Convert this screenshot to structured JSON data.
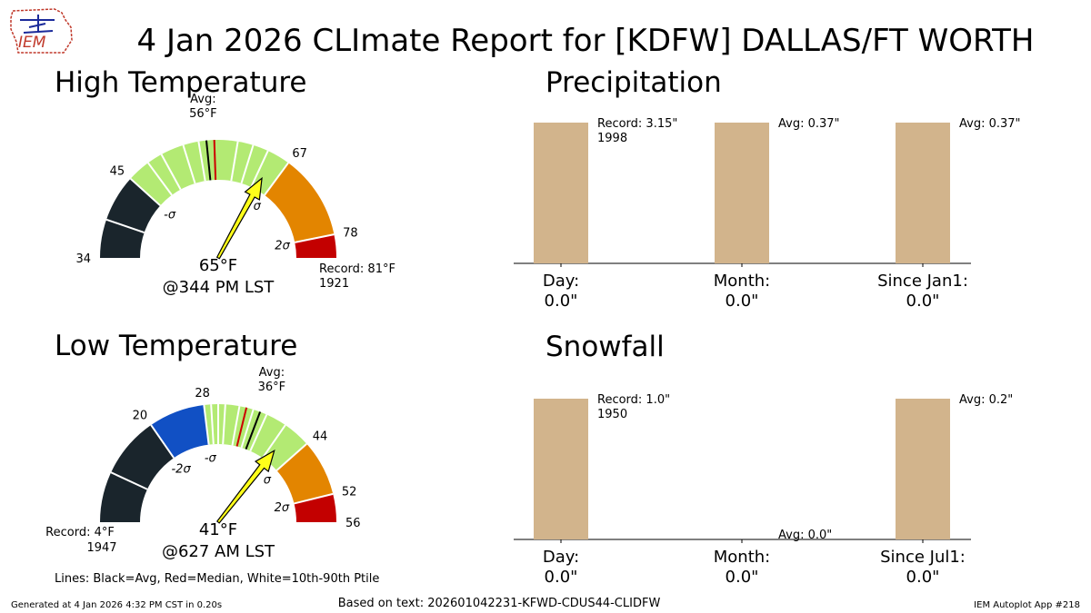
{
  "title": "4 Jan 2026 CLImate Report for [KDFW] DALLAS/FT WORTH",
  "logo_text": "IEM",
  "footer": {
    "generated": "Generated at 4 Jan 2026 4:32 PM CST in 0.20s",
    "based_on": "Based on text: 202601042231-KFWD-CDUS44-CLIDFW",
    "app": "IEM Autoplot App #218",
    "lines_legend": "Lines: Black=Avg, Red=Median, White=10th-90th Ptile"
  },
  "colors": {
    "gauge_dark": "#1a252c",
    "gauge_blue": "#1150c4",
    "gauge_green": "#b3ea73",
    "gauge_orange": "#e38500",
    "gauge_red": "#c30000",
    "needle_fill": "#ffff1a",
    "bar": "#d2b48c",
    "avg_line": "#000000",
    "median_line": "#cc0000",
    "ptile_line": "#ffffff"
  },
  "chart_data": [
    {
      "type": "gauge",
      "id": "high",
      "title": "High Temperature",
      "range": [
        34,
        81
      ],
      "observed": 65,
      "observed_label": "65°F",
      "time_label": "@344 PM LST",
      "avg": 56,
      "avg_label": [
        "Avg:",
        "56°F"
      ],
      "median": 57,
      "ptile_lines": [
        48,
        50,
        53,
        55,
        60,
        62,
        64
      ],
      "band_edges": [
        {
          "from": 34,
          "to": 45,
          "color": "gauge_dark"
        },
        {
          "from": 45,
          "to": 67,
          "color": "gauge_green"
        },
        {
          "from": 67,
          "to": 78,
          "color": "gauge_orange"
        },
        {
          "from": 78,
          "to": 81,
          "color": "gauge_red"
        }
      ],
      "tick_labels": [
        {
          "value": 34,
          "text": "34"
        },
        {
          "value": 45,
          "text": "45"
        },
        {
          "value": 67,
          "text": "67"
        },
        {
          "value": 78,
          "text": "78"
        }
      ],
      "sigma_labels": [
        {
          "value": 45,
          "text": "-σ"
        },
        {
          "value": 67,
          "text": "σ"
        },
        {
          "value": 78,
          "text": "2σ"
        }
      ],
      "record_label": [
        "Record: 81°F",
        "1921"
      ]
    },
    {
      "type": "gauge",
      "id": "low",
      "title": "Low Temperature",
      "range": [
        4,
        56
      ],
      "observed": 41,
      "observed_label": "41°F",
      "time_label": "@627 AM LST",
      "avg": 36,
      "avg_label": [
        "Avg:",
        "36°F"
      ],
      "median": 34,
      "ptile_lines": [
        29,
        30,
        31,
        33,
        35,
        37,
        40
      ],
      "band_edges": [
        {
          "from": 4,
          "to": 20,
          "color": "gauge_dark"
        },
        {
          "from": 20,
          "to": 28,
          "color": "gauge_blue"
        },
        {
          "from": 28,
          "to": 44,
          "color": "gauge_green"
        },
        {
          "from": 44,
          "to": 52,
          "color": "gauge_orange"
        },
        {
          "from": 52,
          "to": 56,
          "color": "gauge_red"
        }
      ],
      "tick_labels": [
        {
          "value": 20,
          "text": "20"
        },
        {
          "value": 28,
          "text": "28"
        },
        {
          "value": 44,
          "text": "44"
        },
        {
          "value": 52,
          "text": "52"
        },
        {
          "value": 56,
          "text": "56"
        }
      ],
      "sigma_labels": [
        {
          "value": 20,
          "text": "-2σ"
        },
        {
          "value": 28,
          "text": "-σ"
        },
        {
          "value": 44,
          "text": "σ"
        },
        {
          "value": 52,
          "text": "2σ"
        }
      ],
      "record_label": [
        "Record: 4°F",
        "1947"
      ]
    },
    {
      "type": "bar",
      "id": "precip",
      "title": "Precipitation",
      "categories": [
        "Day:",
        "Month:",
        "Since Jan1:"
      ],
      "observed_labels": [
        "0.0\"",
        "0.0\"",
        "0.0\""
      ],
      "observed": [
        0.0,
        0.0,
        0.0
      ],
      "reference": [
        3.15,
        0.37,
        0.37
      ],
      "reference_labels": [
        [
          "Record: 3.15\"",
          "1998"
        ],
        [
          "Avg: 0.37\""
        ],
        [
          "Avg: 0.37\""
        ]
      ],
      "bar_fraction": [
        1.0,
        1.0,
        1.0
      ]
    },
    {
      "type": "bar",
      "id": "snow",
      "title": "Snowfall",
      "categories": [
        "Day:",
        "Month:",
        "Since Jul1:"
      ],
      "observed_labels": [
        "0.0\"",
        "0.0\"",
        "0.0\""
      ],
      "observed": [
        0.0,
        0.0,
        0.0
      ],
      "reference": [
        1.0,
        0.0,
        0.2
      ],
      "reference_labels": [
        [
          "Record: 1.0\"",
          "1950"
        ],
        [
          "Avg: 0.0\""
        ],
        [
          "Avg: 0.2\""
        ]
      ],
      "bar_fraction": [
        1.0,
        0.0,
        1.0
      ]
    }
  ]
}
